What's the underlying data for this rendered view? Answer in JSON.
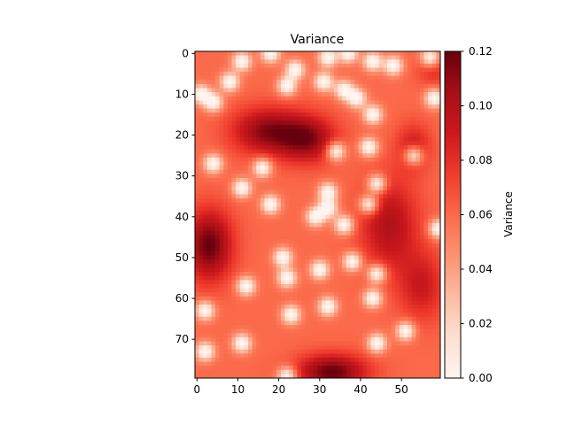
{
  "chart_data": {
    "type": "heatmap",
    "title": "Variance",
    "xlabel": "",
    "ylabel": "",
    "colormap": "Reds",
    "grid": false,
    "n_cols": 60,
    "n_rows": 80,
    "x_ticks": [
      0,
      10,
      20,
      30,
      40,
      50
    ],
    "y_ticks": [
      0,
      10,
      20,
      30,
      40,
      50,
      60,
      70
    ],
    "colorbar": {
      "label": "Variance",
      "range": [
        0.0,
        0.12
      ],
      "ticks": [
        "0.00",
        "0.02",
        "0.04",
        "0.06",
        "0.08",
        "0.10",
        "0.12"
      ]
    },
    "base_level": 0.06,
    "high_regions": [
      {
        "x": 17,
        "y": 19,
        "sx": 6,
        "sy": 4,
        "v": 0.05
      },
      {
        "x": 27,
        "y": 21,
        "sx": 5,
        "sy": 4,
        "v": 0.05
      },
      {
        "x": 3,
        "y": 47,
        "sx": 4,
        "sy": 6,
        "v": 0.06
      },
      {
        "x": 47,
        "y": 42,
        "sx": 5,
        "sy": 8,
        "v": 0.04
      },
      {
        "x": 55,
        "y": 57,
        "sx": 4,
        "sy": 6,
        "v": 0.03
      },
      {
        "x": 33,
        "y": 78,
        "sx": 6,
        "sy": 3,
        "v": 0.06
      },
      {
        "x": 53,
        "y": 23,
        "sx": 3,
        "sy": 4,
        "v": 0.03
      },
      {
        "x": 58,
        "y": 4,
        "sx": 3,
        "sy": 3,
        "v": 0.02
      }
    ],
    "low_points": [
      [
        11,
        2
      ],
      [
        18,
        0
      ],
      [
        24,
        4
      ],
      [
        32,
        1
      ],
      [
        37,
        0
      ],
      [
        43,
        2
      ],
      [
        48,
        3
      ],
      [
        57,
        1
      ],
      [
        1,
        10
      ],
      [
        4,
        12
      ],
      [
        8,
        7
      ],
      [
        22,
        8
      ],
      [
        31,
        7
      ],
      [
        36,
        9
      ],
      [
        39,
        11
      ],
      [
        43,
        15
      ],
      [
        58,
        11
      ],
      [
        34,
        24
      ],
      [
        42,
        23
      ],
      [
        53,
        25
      ],
      [
        4,
        27
      ],
      [
        16,
        28
      ],
      [
        11,
        33
      ],
      [
        32,
        34
      ],
      [
        44,
        32
      ],
      [
        18,
        37
      ],
      [
        32,
        38
      ],
      [
        29,
        40
      ],
      [
        36,
        42
      ],
      [
        42,
        37
      ],
      [
        59,
        43
      ],
      [
        21,
        50
      ],
      [
        22,
        55
      ],
      [
        30,
        53
      ],
      [
        38,
        51
      ],
      [
        44,
        54
      ],
      [
        43,
        60
      ],
      [
        12,
        57
      ],
      [
        2,
        63
      ],
      [
        23,
        64
      ],
      [
        32,
        62
      ],
      [
        51,
        68
      ],
      [
        11,
        71
      ],
      [
        2,
        73
      ],
      [
        44,
        71
      ],
      [
        22,
        79
      ]
    ],
    "low_radius": 1.6,
    "low_depth": 0.065
  }
}
